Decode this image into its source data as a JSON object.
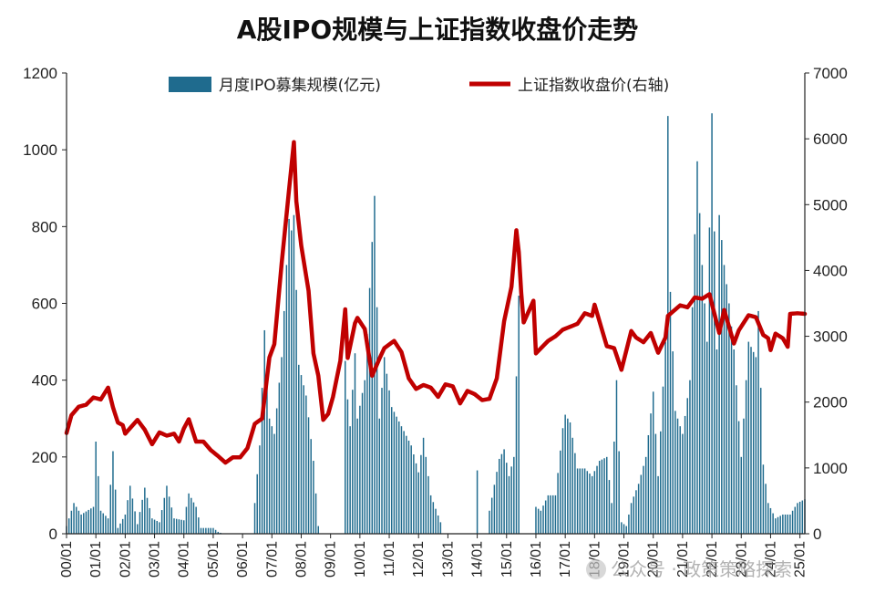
{
  "chart_data": {
    "type": "bar+line",
    "title": "A股IPO规模与上证指数收盘价走势",
    "x_start": "2000-01",
    "x_end": "2025-03",
    "x_tick_labels": [
      "00/01",
      "01/01",
      "02/01",
      "03/01",
      "04/01",
      "05/01",
      "06/01",
      "07/01",
      "08/01",
      "09/01",
      "10/01",
      "11/01",
      "12/01",
      "13/01",
      "14/01",
      "15/01",
      "16/01",
      "17/01",
      "18/01",
      "19/01",
      "20/01",
      "21/01",
      "22/01",
      "23/01",
      "24/01",
      "25/01"
    ],
    "y_left": {
      "range": [
        0,
        1200
      ],
      "ticks": [
        0,
        200,
        400,
        600,
        800,
        1000,
        1200
      ]
    },
    "y_right": {
      "range": [
        0,
        7000
      ],
      "ticks": [
        0,
        1000,
        2000,
        3000,
        4000,
        5000,
        6000,
        7000
      ]
    },
    "legend_placement": "top",
    "series": [
      {
        "name": "月度IPO募集规模(亿元)",
        "type": "bar",
        "axis": "left",
        "color": "#1f6b8e"
      },
      {
        "name": "上证指数收盘价(右轴)",
        "type": "line",
        "axis": "right",
        "color": "#c00000"
      }
    ],
    "ipo_monthly_anchors": [
      [
        "2000-01",
        20
      ],
      [
        "2000-04",
        80
      ],
      [
        "2000-07",
        50
      ],
      [
        "2000-12",
        70
      ],
      [
        "2001-01",
        240
      ],
      [
        "2001-03",
        60
      ],
      [
        "2001-06",
        40
      ],
      [
        "2001-08",
        215
      ],
      [
        "2001-10",
        15
      ],
      [
        "2002-01",
        50
      ],
      [
        "2002-03",
        125
      ],
      [
        "2002-06",
        25
      ],
      [
        "2002-09",
        120
      ],
      [
        "2002-12",
        40
      ],
      [
        "2003-03",
        30
      ],
      [
        "2003-06",
        125
      ],
      [
        "2003-09",
        40
      ],
      [
        "2004-01",
        35
      ],
      [
        "2004-03",
        105
      ],
      [
        "2004-06",
        70
      ],
      [
        "2004-08",
        15
      ],
      [
        "2005-01",
        15
      ],
      [
        "2005-03",
        5
      ],
      [
        "2005-05",
        0
      ],
      [
        "2006-05",
        0
      ],
      [
        "2006-06",
        80
      ],
      [
        "2006-08",
        230
      ],
      [
        "2006-10",
        530
      ],
      [
        "2006-12",
        300
      ],
      [
        "2007-02",
        260
      ],
      [
        "2007-05",
        460
      ],
      [
        "2007-08",
        820
      ],
      [
        "2007-09",
        790
      ],
      [
        "2007-10",
        830
      ],
      [
        "2007-12",
        440
      ],
      [
        "2008-03",
        360
      ],
      [
        "2008-06",
        190
      ],
      [
        "2008-08",
        20
      ],
      [
        "2008-09",
        0
      ],
      [
        "2009-06",
        0
      ],
      [
        "2009-07",
        450
      ],
      [
        "2009-08",
        350
      ],
      [
        "2009-09",
        280
      ],
      [
        "2009-11",
        470
      ],
      [
        "2009-12",
        300
      ],
      [
        "2010-03",
        400
      ],
      [
        "2010-07",
        880
      ],
      [
        "2010-09",
        300
      ],
      [
        "2010-11",
        460
      ],
      [
        "2011-02",
        330
      ],
      [
        "2011-06",
        280
      ],
      [
        "2011-10",
        230
      ],
      [
        "2012-01",
        160
      ],
      [
        "2012-03",
        250
      ],
      [
        "2012-06",
        100
      ],
      [
        "2012-10",
        30
      ],
      [
        "2012-11",
        0
      ],
      [
        "2013-12",
        0
      ],
      [
        "2014-01",
        165
      ],
      [
        "2014-02",
        0
      ],
      [
        "2014-05",
        0
      ],
      [
        "2014-06",
        60
      ],
      [
        "2014-10",
        195
      ],
      [
        "2014-12",
        220
      ],
      [
        "2015-02",
        150
      ],
      [
        "2015-04",
        200
      ],
      [
        "2015-06",
        620
      ],
      [
        "2015-07",
        0
      ],
      [
        "2015-12",
        0
      ],
      [
        "2016-01",
        70
      ],
      [
        "2016-03",
        60
      ],
      [
        "2016-06",
        100
      ],
      [
        "2016-09",
        100
      ],
      [
        "2016-12",
        275
      ],
      [
        "2017-01",
        310
      ],
      [
        "2017-03",
        290
      ],
      [
        "2017-06",
        170
      ],
      [
        "2017-09",
        170
      ],
      [
        "2017-12",
        150
      ],
      [
        "2018-03",
        190
      ],
      [
        "2018-06",
        200
      ],
      [
        "2018-08",
        80
      ],
      [
        "2018-10",
        400
      ],
      [
        "2018-12",
        30
      ],
      [
        "2019-02",
        20
      ],
      [
        "2019-04",
        80
      ],
      [
        "2019-07",
        130
      ],
      [
        "2019-10",
        200
      ],
      [
        "2020-01",
        370
      ],
      [
        "2020-03",
        150
      ],
      [
        "2020-06",
        500
      ],
      [
        "2020-07",
        1088
      ],
      [
        "2020-08",
        630
      ],
      [
        "2020-10",
        320
      ],
      [
        "2021-01",
        260
      ],
      [
        "2021-04",
        400
      ],
      [
        "2021-07",
        970
      ],
      [
        "2021-09",
        700
      ],
      [
        "2021-11",
        500
      ],
      [
        "2022-01",
        1095
      ],
      [
        "2022-03",
        480
      ],
      [
        "2022-04",
        830
      ],
      [
        "2022-06",
        700
      ],
      [
        "2022-08",
        600
      ],
      [
        "2022-10",
        480
      ],
      [
        "2023-01",
        200
      ],
      [
        "2023-04",
        500
      ],
      [
        "2023-07",
        460
      ],
      [
        "2023-08",
        580
      ],
      [
        "2023-10",
        180
      ],
      [
        "2023-12",
        80
      ],
      [
        "2024-03",
        40
      ],
      [
        "2024-06",
        50
      ],
      [
        "2024-09",
        50
      ],
      [
        "2024-12",
        80
      ],
      [
        "2025-03",
        90
      ]
    ],
    "sse_close_anchors": [
      [
        "2000-01",
        1530
      ],
      [
        "2000-03",
        1800
      ],
      [
        "2000-06",
        1930
      ],
      [
        "2000-09",
        1960
      ],
      [
        "2000-12",
        2070
      ],
      [
        "2001-03",
        2040
      ],
      [
        "2001-06",
        2220
      ],
      [
        "2001-08",
        1920
      ],
      [
        "2001-10",
        1690
      ],
      [
        "2001-12",
        1650
      ],
      [
        "2002-01",
        1520
      ],
      [
        "2002-06",
        1730
      ],
      [
        "2002-09",
        1580
      ],
      [
        "2002-12",
        1360
      ],
      [
        "2003-03",
        1540
      ],
      [
        "2003-06",
        1490
      ],
      [
        "2003-09",
        1520
      ],
      [
        "2003-11",
        1400
      ],
      [
        "2004-01",
        1600
      ],
      [
        "2004-03",
        1740
      ],
      [
        "2004-06",
        1400
      ],
      [
        "2004-09",
        1400
      ],
      [
        "2004-12",
        1270
      ],
      [
        "2005-03",
        1180
      ],
      [
        "2005-06",
        1080
      ],
      [
        "2005-09",
        1160
      ],
      [
        "2005-12",
        1160
      ],
      [
        "2006-03",
        1300
      ],
      [
        "2006-06",
        1670
      ],
      [
        "2006-09",
        1750
      ],
      [
        "2006-12",
        2680
      ],
      [
        "2007-02",
        2880
      ],
      [
        "2007-05",
        4110
      ],
      [
        "2007-08",
        5220
      ],
      [
        "2007-10",
        5950
      ],
      [
        "2007-11",
        5050
      ],
      [
        "2008-01",
        4380
      ],
      [
        "2008-04",
        3690
      ],
      [
        "2008-06",
        2740
      ],
      [
        "2008-08",
        2400
      ],
      [
        "2008-10",
        1730
      ],
      [
        "2008-12",
        1820
      ],
      [
        "2009-02",
        2080
      ],
      [
        "2009-05",
        2630
      ],
      [
        "2009-07",
        3410
      ],
      [
        "2009-08",
        2670
      ],
      [
        "2009-11",
        3200
      ],
      [
        "2009-12",
        3280
      ],
      [
        "2010-03",
        3110
      ],
      [
        "2010-06",
        2400
      ],
      [
        "2010-09",
        2660
      ],
      [
        "2010-11",
        2820
      ],
      [
        "2011-03",
        2930
      ],
      [
        "2011-06",
        2760
      ],
      [
        "2011-09",
        2360
      ],
      [
        "2011-12",
        2200
      ],
      [
        "2012-03",
        2260
      ],
      [
        "2012-06",
        2220
      ],
      [
        "2012-09",
        2080
      ],
      [
        "2012-12",
        2270
      ],
      [
        "2013-03",
        2240
      ],
      [
        "2013-06",
        1980
      ],
      [
        "2013-09",
        2170
      ],
      [
        "2013-12",
        2120
      ],
      [
        "2014-03",
        2030
      ],
      [
        "2014-06",
        2050
      ],
      [
        "2014-09",
        2360
      ],
      [
        "2014-12",
        3230
      ],
      [
        "2015-03",
        3750
      ],
      [
        "2015-05",
        4610
      ],
      [
        "2015-06",
        4280
      ],
      [
        "2015-07",
        3660
      ],
      [
        "2015-08",
        3210
      ],
      [
        "2015-12",
        3540
      ],
      [
        "2016-01",
        2740
      ],
      [
        "2016-06",
        2930
      ],
      [
        "2016-09",
        3000
      ],
      [
        "2016-12",
        3100
      ],
      [
        "2017-06",
        3190
      ],
      [
        "2017-09",
        3350
      ],
      [
        "2017-12",
        3310
      ],
      [
        "2018-01",
        3480
      ],
      [
        "2018-06",
        2850
      ],
      [
        "2018-09",
        2820
      ],
      [
        "2018-12",
        2490
      ],
      [
        "2019-04",
        3080
      ],
      [
        "2019-06",
        2980
      ],
      [
        "2019-09",
        2910
      ],
      [
        "2019-12",
        3050
      ],
      [
        "2020-03",
        2750
      ],
      [
        "2020-06",
        2980
      ],
      [
        "2020-07",
        3310
      ],
      [
        "2020-12",
        3470
      ],
      [
        "2021-03",
        3440
      ],
      [
        "2021-06",
        3590
      ],
      [
        "2021-09",
        3570
      ],
      [
        "2021-12",
        3640
      ],
      [
        "2022-04",
        3050
      ],
      [
        "2022-06",
        3400
      ],
      [
        "2022-10",
        2890
      ],
      [
        "2022-12",
        3090
      ],
      [
        "2023-04",
        3320
      ],
      [
        "2023-07",
        3290
      ],
      [
        "2023-10",
        3020
      ],
      [
        "2023-12",
        2970
      ],
      [
        "2024-01",
        2790
      ],
      [
        "2024-03",
        3040
      ],
      [
        "2024-06",
        2970
      ],
      [
        "2024-08",
        2840
      ],
      [
        "2024-09",
        3340
      ],
      [
        "2024-12",
        3350
      ],
      [
        "2025-03",
        3340
      ]
    ]
  },
  "watermark": "公众号 · 政策策略探索"
}
